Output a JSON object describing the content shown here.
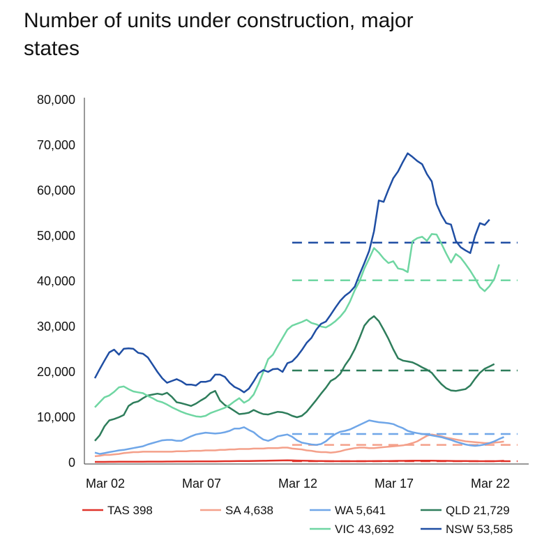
{
  "title": "Number of units under construction, major states",
  "chart_data": {
    "type": "line",
    "title": "Number of units under construction, major states",
    "xlabel": "",
    "ylabel": "",
    "ylim": [
      0,
      80000
    ],
    "xlim": [
      0,
      85
    ],
    "y_ticks": [
      0,
      10000,
      20000,
      30000,
      40000,
      50000,
      60000,
      70000,
      80000
    ],
    "y_tick_labels": [
      "0",
      "10,000",
      "20,000",
      "30,000",
      "40,000",
      "50,000",
      "60,000",
      "70,000",
      "80,000"
    ],
    "x_ticks": [
      0,
      20,
      40,
      60,
      80
    ],
    "x_tick_labels": [
      "Mar 02",
      "Mar 07",
      "Mar 12",
      "Mar 17",
      "Mar 22"
    ],
    "average_line_start": 41,
    "series": [
      {
        "name": "TAS",
        "legend": "TAS 398",
        "color": "#e0332a",
        "average": 300,
        "values": [
          150,
          160,
          160,
          170,
          170,
          180,
          180,
          190,
          190,
          200,
          200,
          210,
          210,
          220,
          220,
          230,
          230,
          240,
          240,
          250,
          250,
          260,
          260,
          270,
          270,
          280,
          290,
          300,
          310,
          320,
          340,
          350,
          360,
          370,
          380,
          400,
          420,
          440,
          460,
          480,
          500,
          480,
          450,
          420,
          400,
          380,
          360,
          340,
          320,
          300,
          300,
          300,
          300,
          300,
          300,
          300,
          310,
          320,
          330,
          340,
          350,
          360,
          370,
          380,
          390,
          400,
          410,
          420,
          420,
          420,
          410,
          400,
          390,
          380,
          370,
          360,
          350,
          340,
          330,
          320,
          310,
          300,
          300,
          310,
          350,
          398
        ]
      },
      {
        "name": "SA",
        "legend": "SA 4,638",
        "color": "#f4a08a",
        "average": 3900,
        "values": [
          1400,
          1500,
          1700,
          1700,
          1800,
          1900,
          2100,
          2200,
          2300,
          2300,
          2400,
          2400,
          2400,
          2400,
          2400,
          2400,
          2400,
          2500,
          2500,
          2500,
          2600,
          2600,
          2600,
          2700,
          2700,
          2700,
          2800,
          2800,
          2900,
          2900,
          3000,
          3000,
          3000,
          3100,
          3100,
          3100,
          3200,
          3200,
          3200,
          3300,
          3300,
          3100,
          3000,
          2900,
          2700,
          2600,
          2400,
          2300,
          2300,
          2200,
          2300,
          2500,
          2800,
          3000,
          3200,
          3300,
          3300,
          3200,
          3200,
          3300,
          3400,
          3500,
          3600,
          3700,
          3800,
          4000,
          4300,
          4700,
          5300,
          5900,
          6200,
          6000,
          5800,
          5500,
          5300,
          5100,
          4900,
          4700,
          4600,
          4500,
          4400,
          4300,
          4300,
          4400,
          4500,
          4638
        ]
      },
      {
        "name": "WA",
        "legend": "WA 5,641",
        "color": "#6fa6e8",
        "average": 6300,
        "values": [
          2200,
          1900,
          2100,
          2300,
          2500,
          2700,
          2800,
          3000,
          3200,
          3400,
          3600,
          4000,
          4300,
          4600,
          4900,
          5000,
          5000,
          4800,
          4800,
          5300,
          5800,
          6200,
          6400,
          6600,
          6500,
          6400,
          6500,
          6700,
          7000,
          7500,
          7500,
          7800,
          7200,
          6700,
          5800,
          5100,
          4800,
          5200,
          5800,
          6000,
          6200,
          5700,
          4900,
          4400,
          4200,
          4000,
          3900,
          4100,
          4700,
          5600,
          6300,
          6800,
          7000,
          7300,
          7800,
          8300,
          8800,
          9300,
          9100,
          8900,
          8800,
          8700,
          8500,
          8000,
          7600,
          7000,
          6700,
          6500,
          6300,
          6200,
          6000,
          5800,
          5600,
          5300,
          5000,
          4600,
          4300,
          4000,
          3800,
          3700,
          3800,
          4000,
          4300,
          4700,
          5200,
          5641
        ]
      },
      {
        "name": "QLD",
        "legend": "QLD 21,729",
        "color": "#2e7d5b",
        "average": 20300,
        "values": [
          4800,
          6000,
          8000,
          9300,
          9600,
          10000,
          10500,
          12500,
          13200,
          13500,
          14200,
          14800,
          15000,
          15200,
          15000,
          15400,
          14500,
          13300,
          13100,
          12800,
          12500,
          13000,
          13700,
          14300,
          15300,
          15800,
          13700,
          12700,
          12100,
          11400,
          10700,
          10800,
          11000,
          11600,
          11100,
          10700,
          10600,
          10900,
          11200,
          11100,
          10800,
          10300,
          10000,
          10300,
          11200,
          12500,
          13800,
          15200,
          16500,
          18000,
          18600,
          19600,
          21500,
          23000,
          25000,
          27500,
          30200,
          31500,
          32300,
          31200,
          29300,
          27300,
          25000,
          23000,
          22500,
          22300,
          22100,
          21600,
          21000,
          20500,
          19800,
          18500,
          17300,
          16400,
          15900,
          15800,
          16000,
          16200,
          17000,
          18500,
          19800,
          20700,
          21200,
          21729
        ]
      },
      {
        "name": "VIC",
        "legend": "VIC 43,692",
        "color": "#6fd6a2",
        "average": 40200,
        "values": [
          12200,
          13300,
          14400,
          14800,
          15600,
          16600,
          16800,
          16200,
          15700,
          15500,
          15300,
          14700,
          14200,
          13600,
          13300,
          12800,
          12200,
          11700,
          11200,
          10800,
          10500,
          10200,
          10100,
          10300,
          10900,
          11300,
          11700,
          12100,
          12700,
          13500,
          14200,
          13200,
          13800,
          15000,
          17300,
          20000,
          22800,
          23800,
          25700,
          27500,
          29300,
          30200,
          30600,
          31000,
          31500,
          30800,
          30500,
          30000,
          29800,
          30400,
          31200,
          32200,
          33500,
          35500,
          38000,
          40000,
          42800,
          45000,
          47300,
          46300,
          45000,
          44000,
          44400,
          42800,
          42600,
          42000,
          48800,
          49500,
          49800,
          48900,
          50400,
          50300,
          48300,
          46100,
          44100,
          46000,
          45200,
          43800,
          42300,
          40600,
          38700,
          37800,
          38900,
          40500,
          43692
        ]
      },
      {
        "name": "NSW",
        "legend": "NSW 53,585",
        "color": "#1f4ea3",
        "average": 48500,
        "values": [
          18600,
          20600,
          22500,
          24300,
          24900,
          23800,
          25100,
          25200,
          25100,
          24200,
          24000,
          23200,
          21600,
          20000,
          18600,
          17600,
          18000,
          18400,
          17900,
          17200,
          17200,
          17000,
          17800,
          17800,
          18100,
          19400,
          19400,
          18900,
          17600,
          16700,
          16200,
          15500,
          16300,
          17900,
          19700,
          20400,
          20000,
          20600,
          20700,
          20000,
          21900,
          22300,
          23400,
          24800,
          26400,
          27500,
          29300,
          30600,
          31100,
          32600,
          34200,
          35700,
          36800,
          37600,
          38800,
          41500,
          44000,
          46700,
          51000,
          57800,
          57500,
          60200,
          62700,
          64200,
          66300,
          68200,
          67400,
          66500,
          65800,
          63600,
          62000,
          57000,
          54600,
          52800,
          52500,
          48900,
          47500,
          46800,
          46200,
          50000,
          52800,
          52400,
          53585
        ]
      }
    ]
  }
}
